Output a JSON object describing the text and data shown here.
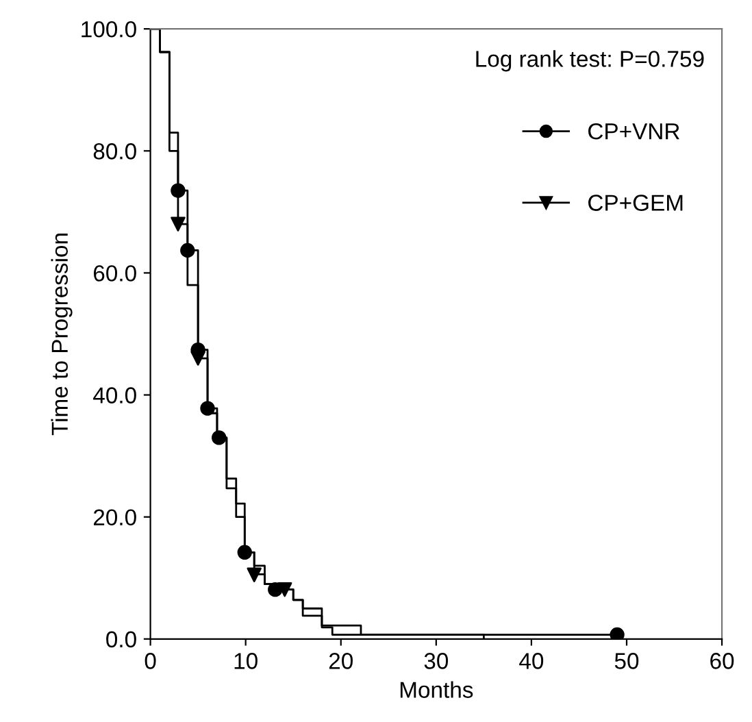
{
  "chart_data": {
    "type": "step",
    "xlabel": "Months",
    "ylabel": "Time to Progression",
    "annotations": [
      "Log rank test: P=0.759"
    ],
    "xlim": [
      0,
      60
    ],
    "xticks": [
      0,
      10,
      20,
      30,
      40,
      50,
      60
    ],
    "ylim": [
      0,
      100
    ],
    "yticks": [
      {
        "value": 0,
        "label": "0.0"
      },
      {
        "value": 20,
        "label": "20.0"
      },
      {
        "value": 40,
        "label": "40.0"
      },
      {
        "value": 60,
        "label": "60.0"
      },
      {
        "value": 80,
        "label": "80.0"
      },
      {
        "value": 100,
        "label": "100.0"
      }
    ],
    "grid": false,
    "legend": "top right",
    "series": [
      {
        "color": "#000000",
        "x": [
          0,
          1,
          2,
          2.9,
          3.9,
          5.0,
          6.0,
          7.0,
          8.0,
          9.0,
          9.9,
          10.9,
          12,
          13.1,
          15,
          16,
          18,
          22.1,
          49
        ],
        "values": [
          100,
          96.2,
          80,
          73.5,
          63.7,
          47.4,
          37.8,
          33,
          24.7,
          20,
          14.2,
          12,
          9,
          8.1,
          6.4,
          5,
          2.2,
          0.7,
          0.7
        ]
      },
      {
        "type": "scatter",
        "name": "CP+VNR",
        "color": "#000000",
        "marker": "circle",
        "x": [
          2.9,
          3.9,
          5,
          6,
          7.2,
          9.9,
          13.1,
          49
        ],
        "values": [
          73.5,
          63.7,
          47.4,
          37.8,
          33,
          14.2,
          8.1,
          0.7
        ]
      },
      {
        "color": "#000000",
        "x": [
          0,
          1,
          2,
          2.9,
          3.9,
          5.0,
          6.0,
          7.0,
          8.0,
          9.0,
          9.9,
          10.9,
          12,
          14.1,
          15,
          16,
          18,
          19.1,
          35
        ],
        "values": [
          100,
          96.2,
          83,
          68,
          58,
          46,
          37,
          33,
          26.3,
          22.2,
          14.2,
          10.6,
          9,
          8.1,
          6.4,
          3.8,
          1.9,
          0.7,
          0
        ]
      },
      {
        "type": "scatter",
        "name": "CP+GEM",
        "color": "#000000",
        "marker": "triangle",
        "x": [
          2.9,
          5,
          10.9,
          14.1
        ],
        "values": [
          68,
          46,
          10.5,
          8.1
        ]
      }
    ]
  }
}
